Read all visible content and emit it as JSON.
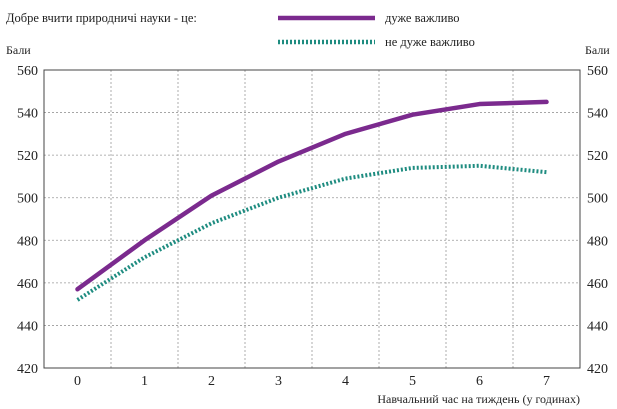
{
  "chart_data": {
    "type": "line",
    "legend_title": "Добре вчити природничі науки - це:",
    "xlabel": "Навчальний час на тиждень (у годинах)",
    "ylabel_left": "Бали",
    "ylabel_right": "Бали",
    "x": [
      0,
      1,
      2,
      3,
      4,
      5,
      6,
      7
    ],
    "xlim": [
      -0.5,
      7.5
    ],
    "ylim": [
      420,
      560
    ],
    "yticks": [
      420,
      440,
      460,
      480,
      500,
      520,
      540,
      560
    ],
    "grid": true,
    "legend_position": "top",
    "series": [
      {
        "name": "дуже важливо",
        "values": [
          457,
          480,
          501,
          517,
          530,
          539,
          544,
          545
        ],
        "color": "#7b2a8e",
        "style": "solid"
      },
      {
        "name": "не дуже важливо",
        "values": [
          452,
          472,
          488,
          500,
          509,
          514,
          515,
          512
        ],
        "color": "#1e8c80",
        "style": "dotted"
      }
    ]
  }
}
